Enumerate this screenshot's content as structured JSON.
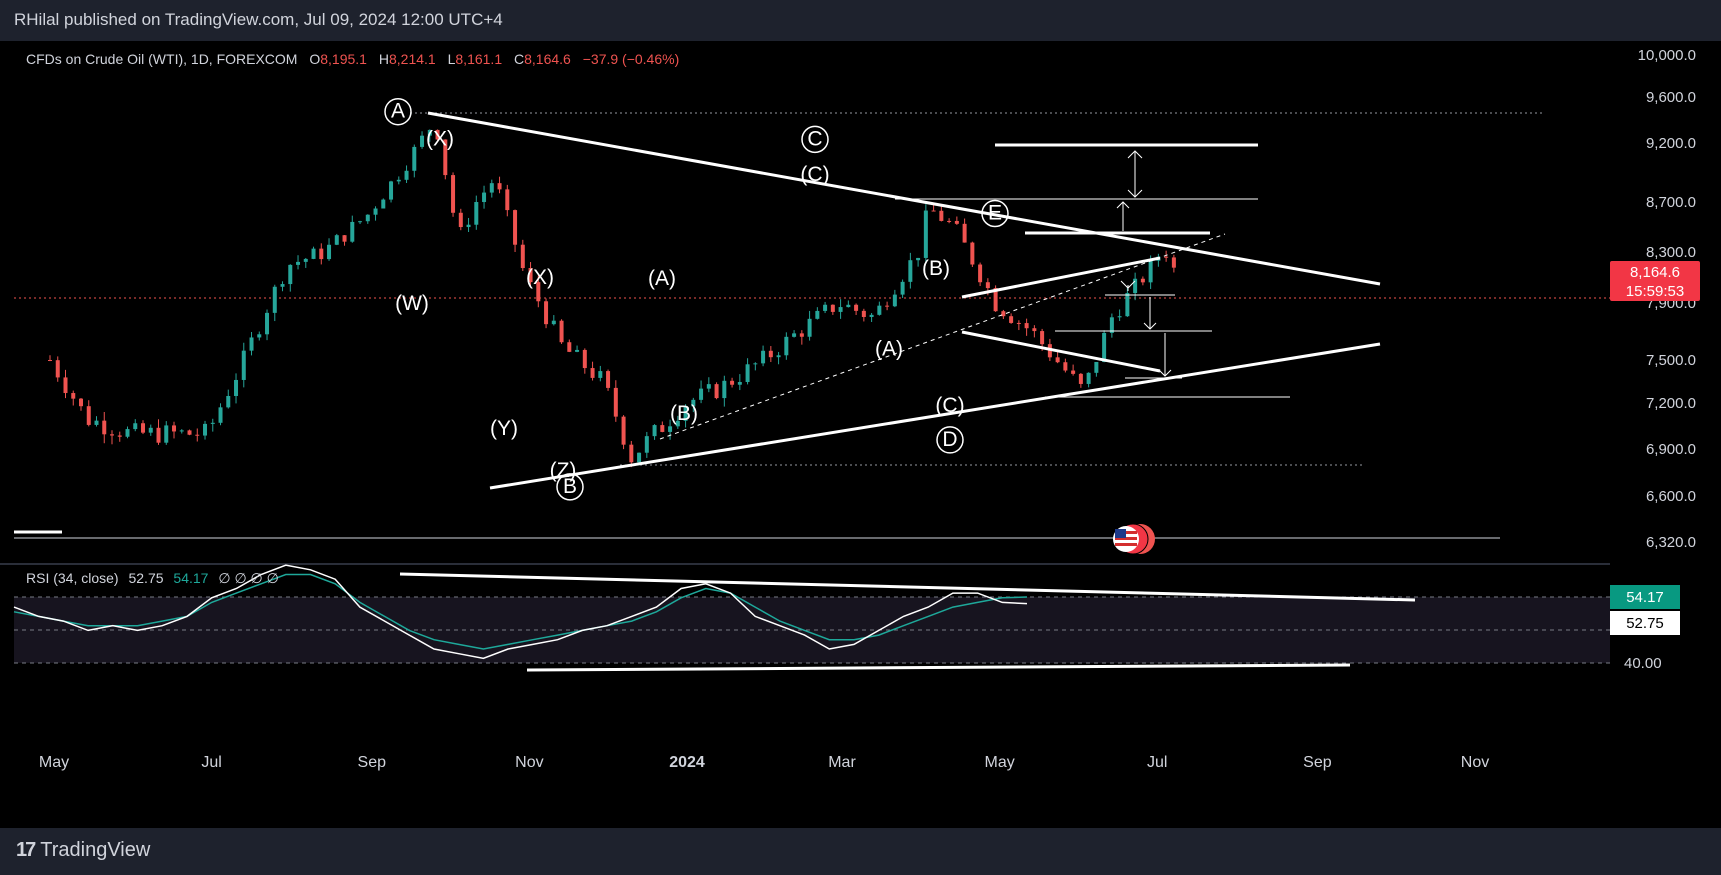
{
  "header": {
    "publisher": "RHilal published on TradingView.com, Jul 09, 2024 12:00 UTC+4"
  },
  "legend": {
    "symbol": "CFDs on Crude Oil (WTI), 1D, FOREXCOM",
    "o_label": "O",
    "o_value": "8,195.1",
    "h_label": "H",
    "h_value": "8,214.1",
    "l_label": "L",
    "l_value": "8,161.1",
    "c_label": "C",
    "c_value": "8,164.6",
    "change": "−37.9 (−0.46%)"
  },
  "rsi_legend": {
    "name": "RSI (34, close)",
    "value1": "52.75",
    "value2": "54.17",
    "placeholders": "∅ ∅ ∅ ∅"
  },
  "price_axis": {
    "ticks": [
      "10,000.0",
      "9,600.0",
      "9,200.0",
      "8,700.0",
      "8,300.0",
      "7,900.0",
      "7,500.0",
      "7,200.0",
      "6,900.0",
      "6,600.0",
      "6,320.0"
    ],
    "current_price": "8,164.6",
    "countdown": "15:59:53"
  },
  "rsi_axis": {
    "ticks": [
      "40.00"
    ],
    "badge_signal": "54.17",
    "badge_rsi": "52.75"
  },
  "time_axis": {
    "labels": [
      "May",
      "Jul",
      "Sep",
      "Nov",
      "2024",
      "Mar",
      "May",
      "Jul",
      "Sep",
      "Nov"
    ]
  },
  "chart_data": {
    "type": "line",
    "title": "CFDs on Crude Oil (WTI), 1D, FOREXCOM",
    "xlabel": "",
    "ylabel": "",
    "ylim": [
      6320,
      10000
    ],
    "grid": false,
    "series": [
      {
        "name": "",
        "x": [
          "2023-05-01",
          "2023-05-15",
          "2023-06-01",
          "2023-06-15",
          "2023-07-01",
          "2023-07-15",
          "2023-08-01",
          "2023-08-15",
          "2023-09-01",
          "2023-09-15",
          "2023-09-27",
          "2023-10-06",
          "2023-10-13",
          "2023-10-20",
          "2023-11-01",
          "2023-11-15",
          "2023-12-01",
          "2023-12-12",
          "2024-01-02",
          "2024-01-15",
          "2024-02-01",
          "2024-02-15",
          "2024-03-01",
          "2024-03-15",
          "2024-04-01",
          "2024-04-05",
          "2024-04-15",
          "2024-05-01",
          "2024-05-15",
          "2024-06-04",
          "2024-06-15",
          "2024-07-01",
          "2024-07-05",
          "2024-07-09"
        ],
        "values": [
          7500,
          7100,
          7000,
          7000,
          7000,
          7500,
          8200,
          8300,
          8600,
          9000,
          9400,
          8400,
          8700,
          8900,
          8100,
          7600,
          7350,
          6850,
          7200,
          7300,
          7500,
          7700,
          7900,
          7800,
          8300,
          8650,
          8500,
          7900,
          7700,
          7280,
          7800,
          8200,
          8350,
          8164.6
        ]
      }
    ],
    "annotations": [
      {
        "label": "A",
        "circled": true,
        "price": 9420
      },
      {
        "label": "(X)",
        "price": 9180
      },
      {
        "label": "(W)",
        "price": 7850
      },
      {
        "label": "(X)",
        "price": 8050
      },
      {
        "label": "(Y)",
        "price": 6990
      },
      {
        "label": "(Z)",
        "price": 6720
      },
      {
        "label": "B",
        "circled": true,
        "price": 6620
      },
      {
        "label": "(A)",
        "price": 8040
      },
      {
        "label": "(B)",
        "price": 7090
      },
      {
        "label": "C",
        "circled": true,
        "price": 9180
      },
      {
        "label": "(C)",
        "price": 8880
      },
      {
        "label": "(A)",
        "price": 7530
      },
      {
        "label": "(B)",
        "price": 8120
      },
      {
        "label": "(C)",
        "price": 7140
      },
      {
        "label": "D",
        "circled": true,
        "price": 6920
      },
      {
        "label": "E",
        "circled": true,
        "price": 8560
      }
    ]
  },
  "rsi_chart": {
    "type": "line",
    "ylim": [
      36,
      64
    ],
    "series": [
      {
        "name": "",
        "values": [
          52,
          50,
          49,
          47,
          48,
          47,
          48,
          50,
          54,
          56,
          59,
          61,
          60,
          58,
          52,
          49,
          46,
          43,
          42,
          41,
          43,
          44,
          45,
          47,
          48,
          50,
          52,
          56,
          57,
          55,
          50,
          48,
          46,
          43,
          44,
          47,
          50,
          52,
          55,
          55,
          53,
          52.75
        ]
      },
      {
        "name": "",
        "values": [
          51,
          50,
          49,
          48,
          48,
          48,
          49,
          50,
          53,
          55,
          57,
          59,
          59,
          57,
          53,
          50,
          47,
          45,
          44,
          43,
          44,
          45,
          46,
          47,
          48,
          49,
          51,
          54,
          56,
          55,
          52,
          49,
          47,
          45,
          45,
          46,
          48,
          50,
          52,
          53,
          54,
          54.17
        ]
      }
    ]
  },
  "colors": {
    "up": "#26a69a",
    "down": "#ef5350",
    "lines": "#ffffff",
    "rsi_signal": "#1ea89a",
    "price_badge": "#f23645",
    "rsi_badge": "#089981"
  }
}
